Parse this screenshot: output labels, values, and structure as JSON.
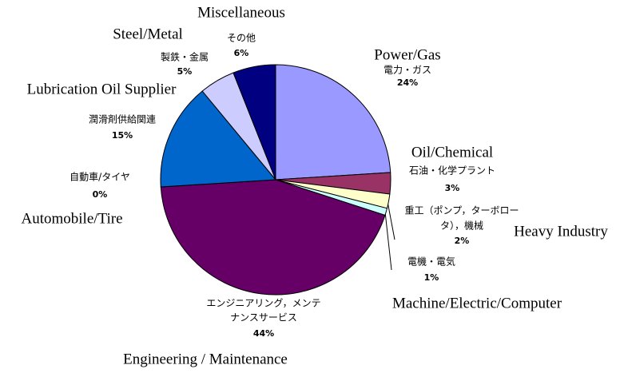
{
  "chart_data": {
    "type": "pie",
    "categories": [
      "Power/Gas",
      "Oil/Chemical",
      "Heavy Industry",
      "Machine/Electric/Computer",
      "Engineering / Maintenance",
      "Automobile/Tire",
      "Lubrication Oil Supplier",
      "Steel/Metal",
      "Miscellaneous"
    ],
    "labels_jp": [
      [
        "電力・ガス"
      ],
      [
        "石油・化学プラント"
      ],
      [
        "重工（ポンプ，ターボロー",
        "タ），機械"
      ],
      [
        "電機・電気"
      ],
      [
        "エンジニアリング，メンテ",
        "ナンスサービス"
      ],
      [
        "自動車/タイヤ"
      ],
      [
        "潤滑剤供給関連"
      ],
      [
        "製鉄・金属"
      ],
      [
        "その他"
      ]
    ],
    "values": [
      24,
      3,
      2,
      1,
      44,
      0,
      15,
      5,
      6
    ],
    "value_labels": [
      "24%",
      "3%",
      "2%",
      "1%",
      "44%",
      "0%",
      "15%",
      "5%",
      "6%"
    ],
    "colors": [
      "#9999ff",
      "#993366",
      "#ffffcc",
      "#ccffff",
      "#660066",
      "#ff8080",
      "#0066cc",
      "#ccccff",
      "#000080"
    ]
  }
}
